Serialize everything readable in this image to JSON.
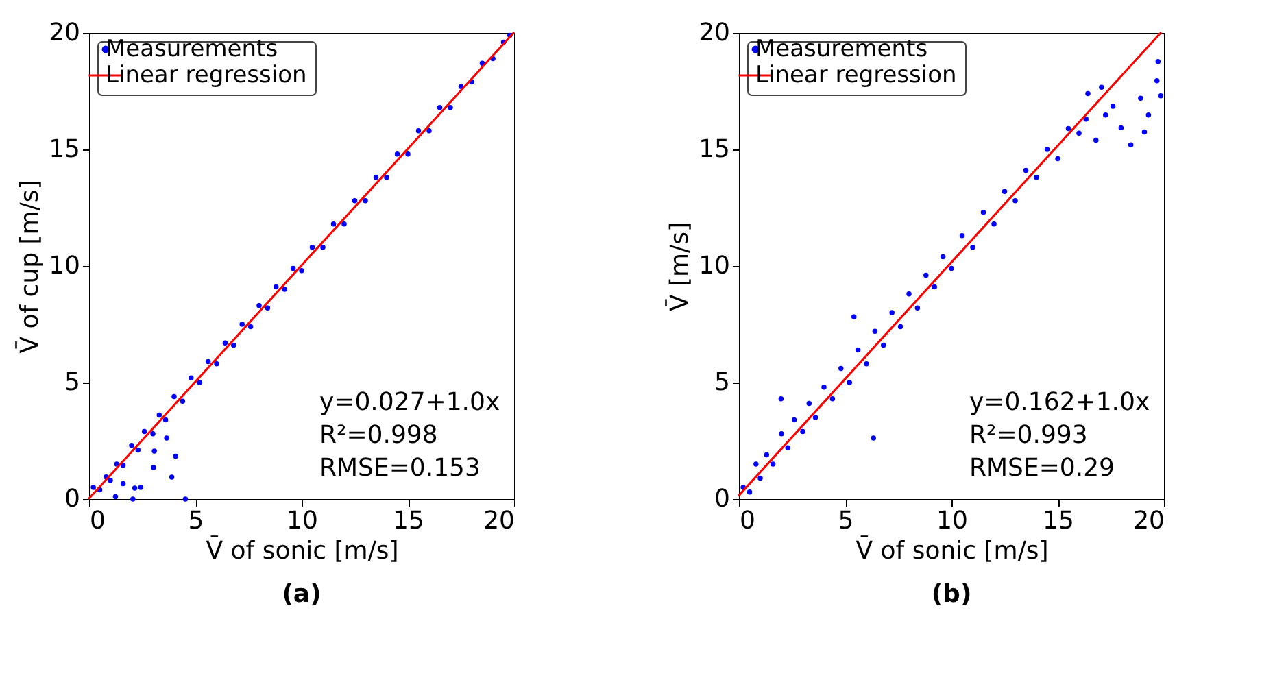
{
  "chart_data": [
    {
      "type": "scatter",
      "xlabel": "V̄ of  sonic [m/s]",
      "ylabel": "V̄ of  cup [m/s]",
      "xlim": [
        0,
        20
      ],
      "ylim": [
        0,
        20
      ],
      "xticks": [
        0,
        5,
        10,
        15,
        20
      ],
      "yticks": [
        0,
        5,
        10,
        15,
        20
      ],
      "legend": "top left",
      "grid": false,
      "annotations": [
        "y=0.027+1.0x",
        "R²=0.998",
        "RMSE=0.153",
        "(a)"
      ],
      "series": [
        {
          "name": "Measurements",
          "color": "#0000ff",
          "marker": "circle",
          "x": [
            0.2,
            0.5,
            0.8,
            1.0,
            1.3,
            1.6,
            2.0,
            2.3,
            2.6,
            3.0,
            3.3,
            3.6,
            4.0,
            4.4,
            4.8,
            5.2,
            5.6,
            6.0,
            6.4,
            6.8,
            7.2,
            7.6,
            8.0,
            8.4,
            8.8,
            9.2,
            9.6,
            10.0,
            10.5,
            11.0,
            11.5,
            12.0,
            12.5,
            13.0,
            13.5,
            14.0,
            14.5,
            15.0,
            15.5,
            16.0,
            16.5,
            17.0,
            17.5,
            18.0,
            18.5,
            19.0,
            19.5,
            19.8,
            4.53,
            3.89,
            4.07,
            3.03,
            3.07,
            3.65,
            2.43,
            2.06,
            1.24,
            1.6,
            2.15
          ],
          "values": [
            0.5,
            0.4,
            0.95,
            0.8,
            1.5,
            1.45,
            2.3,
            2.1,
            2.9,
            2.8,
            3.6,
            3.4,
            4.4,
            4.2,
            5.2,
            5.0,
            5.9,
            5.8,
            6.7,
            6.6,
            7.5,
            7.4,
            8.3,
            8.2,
            9.1,
            9.0,
            9.9,
            9.8,
            10.8,
            10.8,
            11.8,
            11.8,
            12.8,
            12.8,
            13.8,
            13.8,
            14.8,
            14.8,
            15.8,
            15.8,
            16.8,
            16.8,
            17.7,
            17.9,
            18.7,
            18.9,
            19.6,
            19.9,
            0,
            0.94,
            1.84,
            1.35,
            2.06,
            2.62,
            0.5,
            0,
            0.1,
            0.66,
            0.47
          ]
        },
        {
          "name": "Linear regression",
          "type": "line",
          "color": "#ff0000",
          "x": [
            0,
            19.97
          ],
          "values": [
            0.03,
            20
          ]
        }
      ]
    },
    {
      "type": "scatter",
      "xlabel": "V̄ of  sonic [m/s]",
      "ylabel": "V̄ [m/s]",
      "xlim": [
        0,
        20
      ],
      "ylim": [
        0,
        20
      ],
      "xticks": [
        0,
        5,
        10,
        15,
        20
      ],
      "yticks": [
        0,
        5,
        10,
        15,
        20
      ],
      "legend": "top left",
      "grid": false,
      "annotations": [
        "y=0.162+1.0x",
        "R²=0.993",
        "RMSE=0.29",
        "(b)"
      ],
      "series": [
        {
          "name": "Measurements",
          "color": "#0000ff",
          "marker": "circle",
          "x": [
            0.2,
            0.5,
            0.8,
            1.0,
            1.3,
            1.6,
            2.0,
            2.3,
            2.6,
            3.0,
            3.3,
            3.6,
            4.0,
            4.4,
            4.8,
            5.2,
            5.6,
            6.0,
            6.4,
            6.8,
            7.2,
            7.6,
            8.0,
            8.4,
            8.8,
            9.2,
            9.6,
            10.0,
            10.5,
            11.0,
            11.5,
            12.0,
            12.5,
            13.0,
            13.5,
            14.0,
            14.5,
            15.0,
            15.5,
            16.0,
            6.33,
            1.98,
            5.41,
            19.72,
            19.67,
            19.85,
            18.44,
            17.06,
            16.42,
            19.08,
            17.98,
            16.33,
            17.25,
            18.9,
            16.8,
            19.27,
            17.6
          ],
          "values": [
            0.5,
            0.3,
            1.5,
            0.9,
            1.9,
            1.5,
            2.8,
            2.2,
            3.4,
            2.9,
            4.1,
            3.5,
            4.8,
            4.3,
            5.6,
            5.0,
            6.4,
            5.8,
            7.2,
            6.6,
            8.0,
            7.4,
            8.8,
            8.2,
            9.6,
            9.1,
            10.4,
            9.9,
            11.3,
            10.8,
            12.3,
            11.8,
            13.2,
            12.8,
            14.1,
            13.8,
            15.0,
            14.6,
            15.9,
            15.7,
            2.62,
            4.3,
            7.82,
            18.77,
            17.95,
            17.3,
            15.2,
            17.67,
            17.4,
            15.75,
            15.93,
            16.3,
            16.48,
            17.2,
            15.4,
            16.48,
            16.85
          ]
        },
        {
          "name": "Linear regression",
          "type": "line",
          "color": "#ff0000",
          "x": [
            0,
            19.84
          ],
          "values": [
            0.16,
            20
          ]
        }
      ]
    }
  ]
}
